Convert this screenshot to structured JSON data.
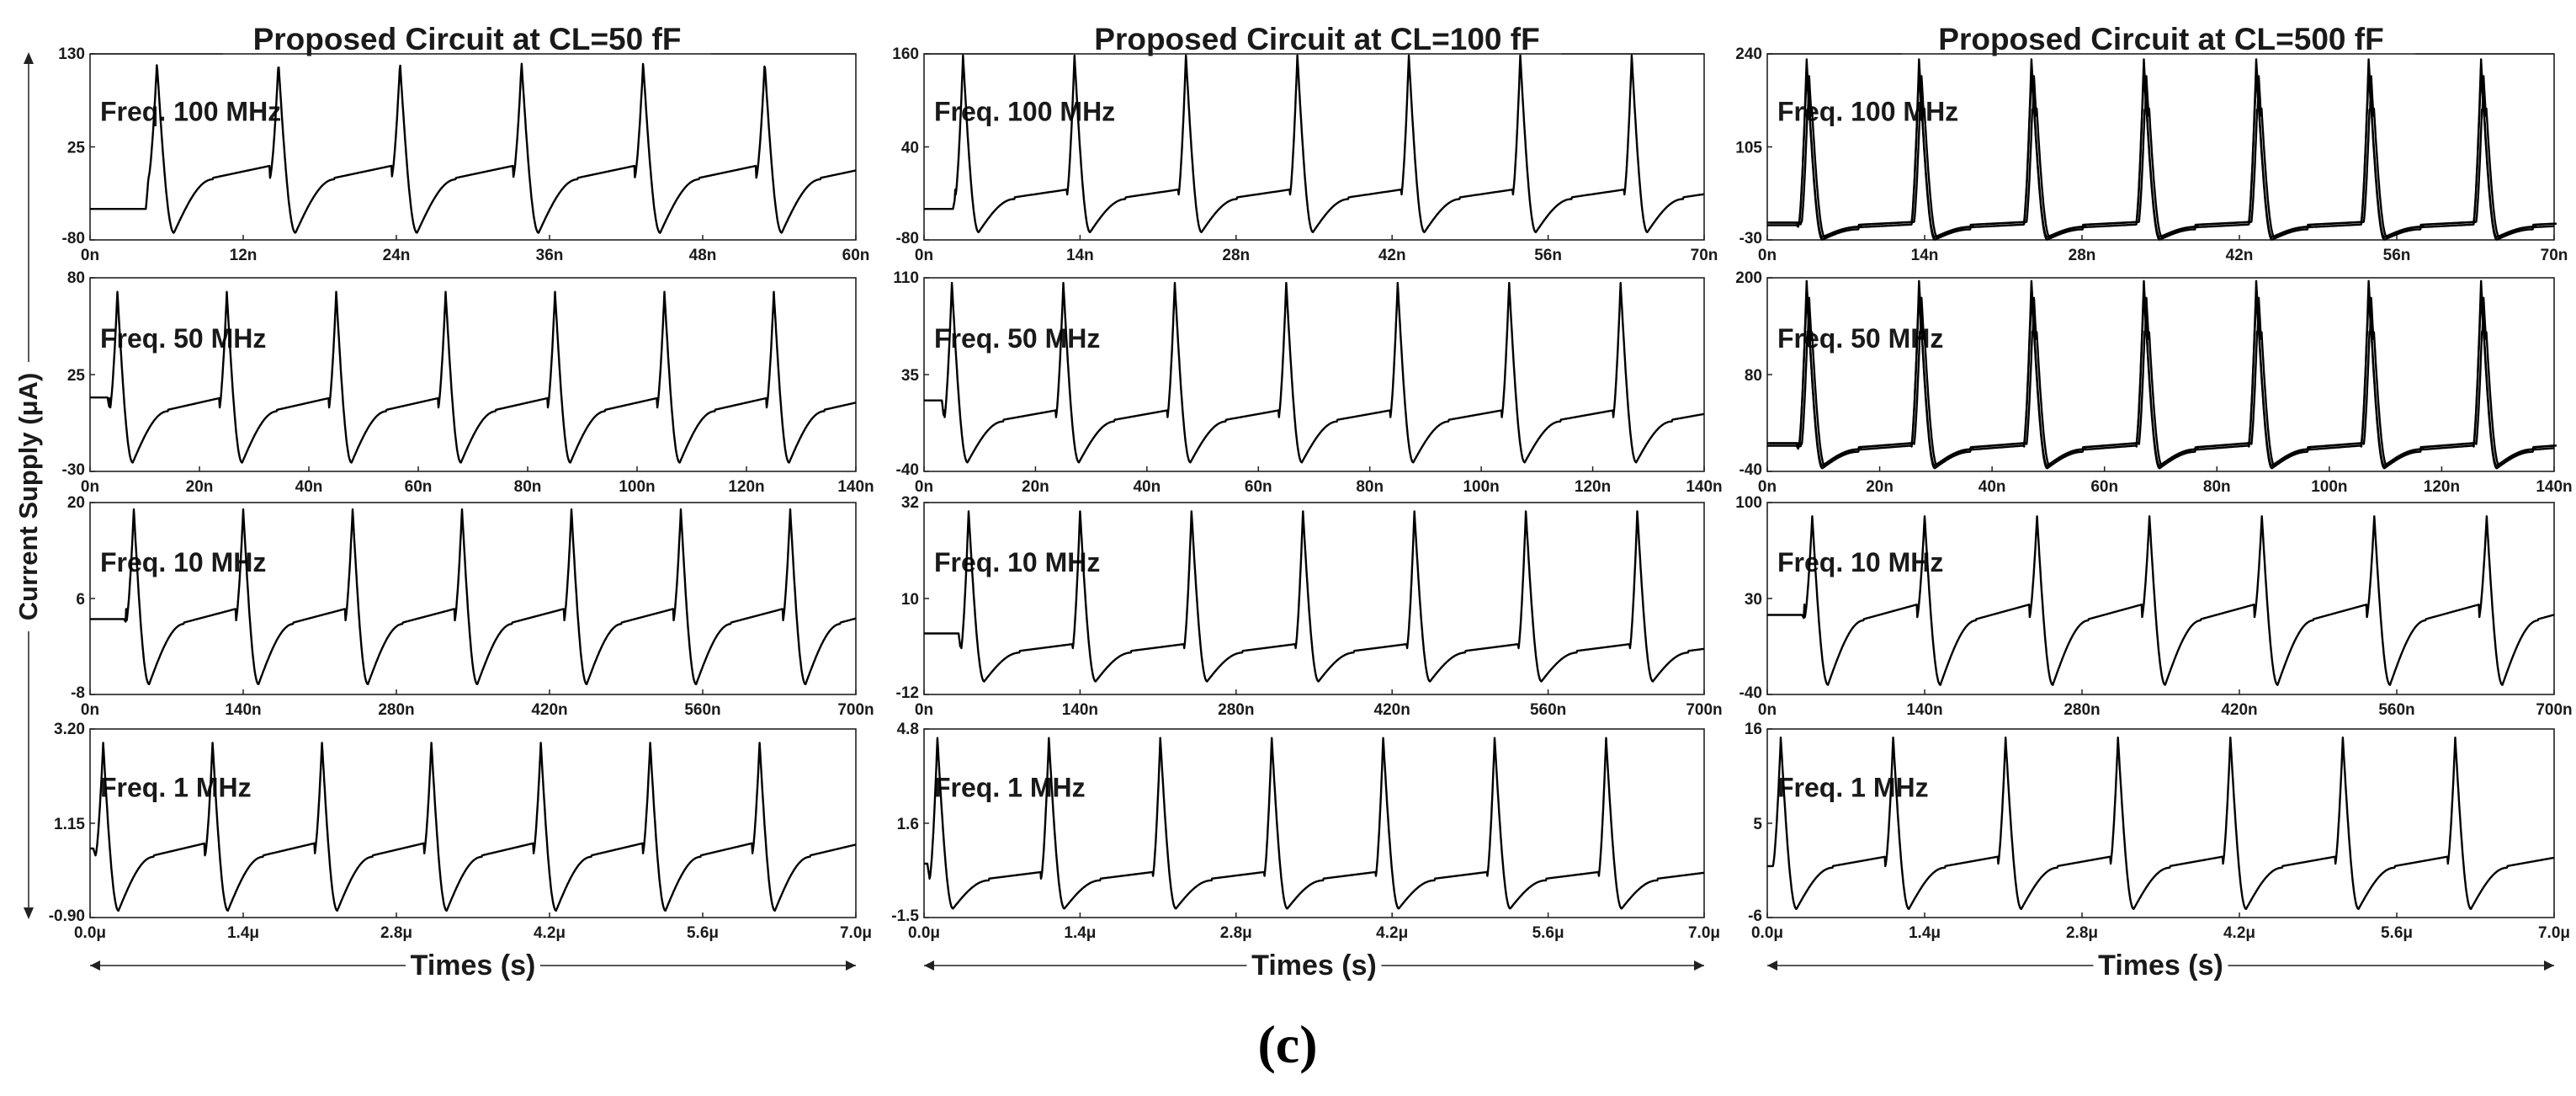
{
  "caption": "(c)",
  "y_axis_label": "Current Supply (μA)",
  "x_axis_label": "Times (s)",
  "chart_data": [
    {
      "type": "line",
      "title": "Proposed Circuit at CL=50 fF",
      "freq_label": "Freq. 100 MHz",
      "ylim": [
        -80,
        130
      ],
      "yticks": [
        "130",
        "25",
        "-80"
      ],
      "xticks": [
        "0n",
        "12n",
        "24n",
        "36n",
        "48n",
        "60n"
      ],
      "xlim": [
        0,
        63
      ],
      "period": 10,
      "first_peak": 5.5,
      "n_peaks": 6,
      "baseline": -10,
      "peak": 120,
      "trough": -72,
      "pre_level": -45,
      "multi": false
    },
    {
      "type": "line",
      "title": "Proposed Circuit at CL=50 fF",
      "freq_label": "Freq. 50 MHz",
      "ylim": [
        -30,
        80
      ],
      "yticks": [
        "80",
        "25",
        "-30"
      ],
      "xticks": [
        "0n",
        "20n",
        "40n",
        "60n",
        "80n",
        "100n",
        "120n",
        "140n"
      ],
      "xlim": [
        0,
        140
      ],
      "period": 20,
      "first_peak": 5,
      "n_peaks": 7,
      "baseline": 5,
      "peak": 72,
      "trough": -25,
      "pre_level": 12,
      "multi": false
    },
    {
      "type": "line",
      "title": "Proposed Circuit at CL=50 fF",
      "freq_label": "Freq. 10 MHz",
      "ylim": [
        -8,
        20
      ],
      "yticks": [
        "20",
        "6",
        "-8"
      ],
      "xticks": [
        "0n",
        "140n",
        "280n",
        "420n",
        "560n",
        "700n"
      ],
      "xlim": [
        0,
        700
      ],
      "period": 100,
      "first_peak": 40,
      "n_peaks": 7,
      "baseline": 2.5,
      "peak": 19,
      "trough": -6.5,
      "pre_level": 3,
      "multi": false
    },
    {
      "type": "line",
      "title": "Proposed Circuit at CL=50 fF",
      "freq_label": "Freq. 1 MHz",
      "ylim": [
        -0.9,
        3.2
      ],
      "yticks": [
        "3.20",
        "1.15",
        "-0.90"
      ],
      "xticks": [
        "0.0μ",
        "1.4μ",
        "2.8μ",
        "4.2μ",
        "5.6μ",
        "7.0μ"
      ],
      "xlim": [
        0,
        7
      ],
      "period": 1,
      "first_peak": 0.12,
      "n_peaks": 7,
      "baseline": 0.45,
      "peak": 2.9,
      "trough": -0.75,
      "pre_level": 0.6,
      "multi": false
    },
    {
      "type": "line",
      "title": "Proposed Circuit at CL=100 fF",
      "freq_label": "Freq. 100 MHz",
      "ylim": [
        -80,
        160
      ],
      "yticks": [
        "160",
        "40",
        "-80"
      ],
      "xticks": [
        "0n",
        "14n",
        "28n",
        "42n",
        "56n",
        "70n"
      ],
      "xlim": [
        0,
        70
      ],
      "period": 10,
      "first_peak": 3.5,
      "n_peaks": 7,
      "baseline": -25,
      "peak": 158,
      "trough": -70,
      "pre_level": -40,
      "multi": false
    },
    {
      "type": "line",
      "title": "Proposed Circuit at CL=100 fF",
      "freq_label": "Freq. 50 MHz",
      "ylim": [
        -40,
        110
      ],
      "yticks": [
        "110",
        "35",
        "-40"
      ],
      "xticks": [
        "0n",
        "20n",
        "40n",
        "60n",
        "80n",
        "100n",
        "120n",
        "140n"
      ],
      "xlim": [
        0,
        140
      ],
      "period": 20,
      "first_peak": 5,
      "n_peaks": 7,
      "baseline": 0,
      "peak": 106,
      "trough": -33,
      "pre_level": 15,
      "multi": false
    },
    {
      "type": "line",
      "title": "Proposed Circuit at CL=100 fF",
      "freq_label": "Freq. 10 MHz",
      "ylim": [
        -12,
        32
      ],
      "yticks": [
        "32",
        "10",
        "-12"
      ],
      "xticks": [
        "0n",
        "140n",
        "280n",
        "420n",
        "560n",
        "700n"
      ],
      "xlim": [
        0,
        700
      ],
      "period": 100,
      "first_peak": 40,
      "n_peaks": 7,
      "baseline": -2,
      "peak": 30,
      "trough": -9,
      "pre_level": 2,
      "multi": false
    },
    {
      "type": "line",
      "title": "Proposed Circuit at CL=100 fF",
      "freq_label": "Freq. 1 MHz",
      "ylim": [
        -1.5,
        4.8
      ],
      "yticks": [
        "4.8",
        "1.6",
        "-1.5"
      ],
      "xticks": [
        "0.0μ",
        "1.4μ",
        "2.8μ",
        "4.2μ",
        "5.6μ",
        "7.0μ"
      ],
      "xlim": [
        0,
        7
      ],
      "period": 1,
      "first_peak": 0.12,
      "n_peaks": 7,
      "baseline": -0.2,
      "peak": 4.5,
      "trough": -1.2,
      "pre_level": 0.3,
      "multi": false
    },
    {
      "type": "line",
      "title": "Proposed Circuit at CL=500 fF",
      "freq_label": "Freq. 100 MHz",
      "ylim": [
        -30,
        240
      ],
      "yticks": [
        "240",
        "105",
        "-30"
      ],
      "xticks": [
        "0n",
        "14n",
        "28n",
        "42n",
        "56n",
        "70n"
      ],
      "xlim": [
        0,
        70
      ],
      "period": 10,
      "first_peak": 3.5,
      "n_peaks": 7,
      "baseline": -8,
      "peak": 232,
      "trough": -26,
      "pre_level": -5,
      "multi": true
    },
    {
      "type": "line",
      "title": "Proposed Circuit at CL=500 fF",
      "freq_label": "Freq. 50 MHz",
      "ylim": [
        -40,
        200
      ],
      "yticks": [
        "200",
        "80",
        "-40"
      ],
      "xticks": [
        "0n",
        "20n",
        "40n",
        "60n",
        "80n",
        "100n",
        "120n",
        "140n"
      ],
      "xlim": [
        0,
        140
      ],
      "period": 20,
      "first_peak": 7,
      "n_peaks": 7,
      "baseline": -10,
      "peak": 196,
      "trough": -33,
      "pre_level": -5,
      "multi": true
    },
    {
      "type": "line",
      "title": "Proposed Circuit at CL=500 fF",
      "freq_label": "Freq. 10 MHz",
      "ylim": [
        -40,
        100
      ],
      "yticks": [
        "100",
        "30",
        "-40"
      ],
      "xticks": [
        "0n",
        "140n",
        "280n",
        "420n",
        "560n",
        "700n"
      ],
      "xlim": [
        0,
        700
      ],
      "period": 100,
      "first_peak": 40,
      "n_peaks": 7,
      "baseline": 15,
      "peak": 90,
      "trough": -33,
      "pre_level": 18,
      "multi": false
    },
    {
      "type": "line",
      "title": "Proposed Circuit at CL=500 fF",
      "freq_label": "Freq. 1 MHz",
      "ylim": [
        -6,
        16
      ],
      "yticks": [
        "16",
        "5",
        "-6"
      ],
      "xticks": [
        "0.0μ",
        "1.4μ",
        "2.8μ",
        "4.2μ",
        "5.6μ",
        "7.0μ"
      ],
      "xlim": [
        0,
        7
      ],
      "period": 1,
      "first_peak": 0.12,
      "n_peaks": 7,
      "baseline": 0,
      "peak": 15,
      "trough": -5,
      "pre_level": 0,
      "multi": false
    }
  ]
}
